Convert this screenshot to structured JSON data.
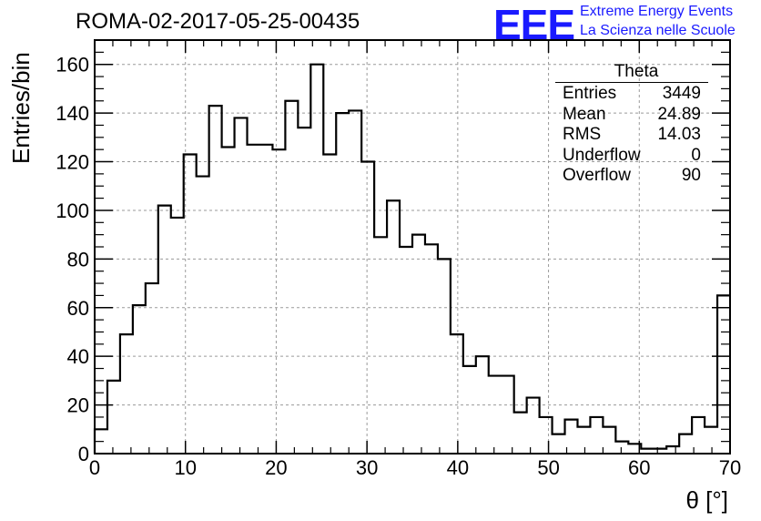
{
  "header": {
    "title": "ROMA-02-2017-05-25-00435"
  },
  "logo": {
    "mark": "EEE",
    "line1": "Extreme Energy Events",
    "line2": "La Scienza nelle Scuole",
    "color": "#1a1aff"
  },
  "stats": {
    "title": "Theta",
    "rows": [
      {
        "label": "Entries",
        "value": "3449"
      },
      {
        "label": "Mean",
        "value": "24.89"
      },
      {
        "label": "RMS",
        "value": "14.03"
      },
      {
        "label": "Underflow",
        "value": "0"
      },
      {
        "label": "Overflow",
        "value": "90"
      }
    ]
  },
  "chart_data": {
    "type": "bar",
    "style": "step-histogram",
    "title": "ROMA-02-2017-05-25-00435",
    "xlabel": "θ [°]",
    "ylabel": "Entries/bin",
    "xlim": [
      0,
      70
    ],
    "ylim": [
      0,
      170
    ],
    "x_ticks": [
      0,
      10,
      20,
      30,
      40,
      50,
      60,
      70
    ],
    "y_ticks": [
      0,
      20,
      40,
      60,
      80,
      100,
      120,
      140,
      160
    ],
    "grid": true,
    "bin_width": 1.4,
    "values": [
      10,
      30,
      49,
      61,
      70,
      102,
      97,
      123,
      114,
      143,
      126,
      138,
      127,
      127,
      125,
      145,
      134,
      160,
      123,
      140,
      141,
      120,
      89,
      104,
      85,
      90,
      86,
      80,
      49,
      36,
      40,
      32,
      32,
      17,
      23,
      15,
      8,
      14,
      11,
      15,
      11,
      5,
      4,
      2,
      2,
      3,
      8,
      15,
      11,
      65
    ],
    "line_color": "#000000",
    "grid_color": "#9a9a9a"
  }
}
